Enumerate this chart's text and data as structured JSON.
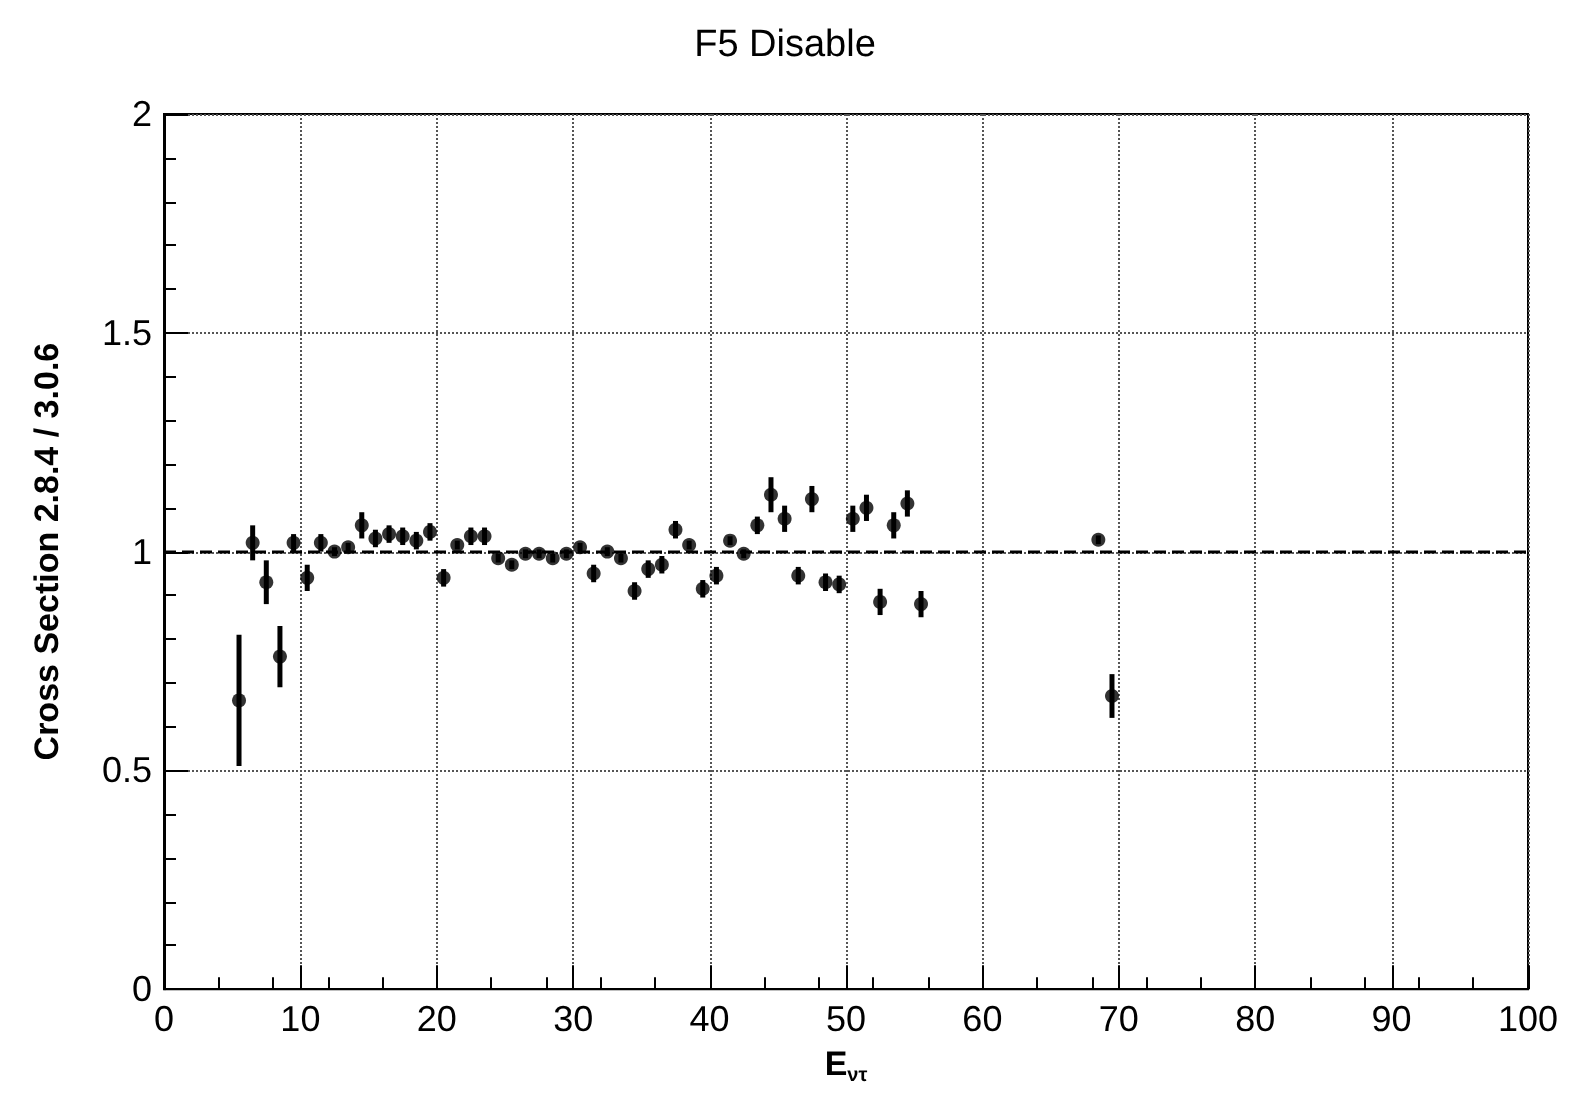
{
  "chart_data": {
    "type": "scatter",
    "title": "F5 Disable",
    "xlabel": "E$_{ντ}$",
    "ylabel": "Cross Section 2.8.4 / 3.0.6",
    "x": [
      5.5,
      6.5,
      7.5,
      8.5,
      9.5,
      10.5,
      11.5,
      12.5,
      13.5,
      14.5,
      15.5,
      16.5,
      17.5,
      18.5,
      19.5,
      20.5,
      21.5,
      22.5,
      23.5,
      24.5,
      25.5,
      26.5,
      27.5,
      28.5,
      29.5,
      30.5,
      31.5,
      32.5,
      33.5,
      34.5,
      35.5,
      36.5,
      37.5,
      38.5,
      39.5,
      40.5,
      41.5,
      42.5,
      43.5,
      44.5,
      45.5,
      46.5,
      47.5,
      48.5,
      49.5,
      50.5,
      51.5,
      52.5,
      53.5,
      54.5,
      55.5,
      68.5,
      69.5
    ],
    "series": [
      {
        "color": "#000000",
        "values": [
          0.66,
          1.02,
          0.93,
          0.76,
          1.02,
          0.94,
          1.02,
          1.0,
          1.01,
          1.06,
          1.03,
          1.04,
          1.035,
          1.025,
          1.045,
          0.94,
          1.015,
          1.035,
          1.035,
          0.985,
          0.97,
          0.995,
          0.995,
          0.985,
          0.995,
          1.01,
          0.95,
          1.0,
          0.985,
          0.91,
          0.96,
          0.97,
          1.05,
          1.015,
          0.915,
          0.945,
          1.025,
          0.995,
          1.06,
          1.13,
          1.075,
          0.945,
          1.12,
          0.93,
          0.925,
          1.075,
          1.1,
          0.885,
          1.06,
          1.11,
          0.88,
          1.027,
          0.67
        ],
        "errors": [
          0.15,
          0.04,
          0.05,
          0.07,
          0.02,
          0.03,
          0.02,
          0.01,
          0.01,
          0.03,
          0.02,
          0.02,
          0.02,
          0.02,
          0.02,
          0.02,
          0.01,
          0.02,
          0.02,
          0.01,
          0.01,
          0.01,
          0.01,
          0.01,
          0.01,
          0.01,
          0.02,
          0.01,
          0.01,
          0.02,
          0.02,
          0.02,
          0.02,
          0.01,
          0.02,
          0.02,
          0.01,
          0.01,
          0.02,
          0.04,
          0.03,
          0.02,
          0.03,
          0.02,
          0.02,
          0.03,
          0.03,
          0.03,
          0.03,
          0.03,
          0.03,
          0.01,
          0.05
        ]
      }
    ],
    "xlim": [
      0,
      100
    ],
    "xticks": [
      0,
      10,
      20,
      30,
      40,
      50,
      60,
      70,
      80,
      90,
      100
    ],
    "ylim": [
      0,
      2
    ],
    "yticks": [
      0,
      0.5,
      1,
      1.5,
      2
    ],
    "grid": true,
    "legend": false,
    "marker": "circle",
    "ref_lines": [
      {
        "axis": "y",
        "value": 1,
        "line_style": "dashed",
        "color": "#000000"
      }
    ]
  }
}
